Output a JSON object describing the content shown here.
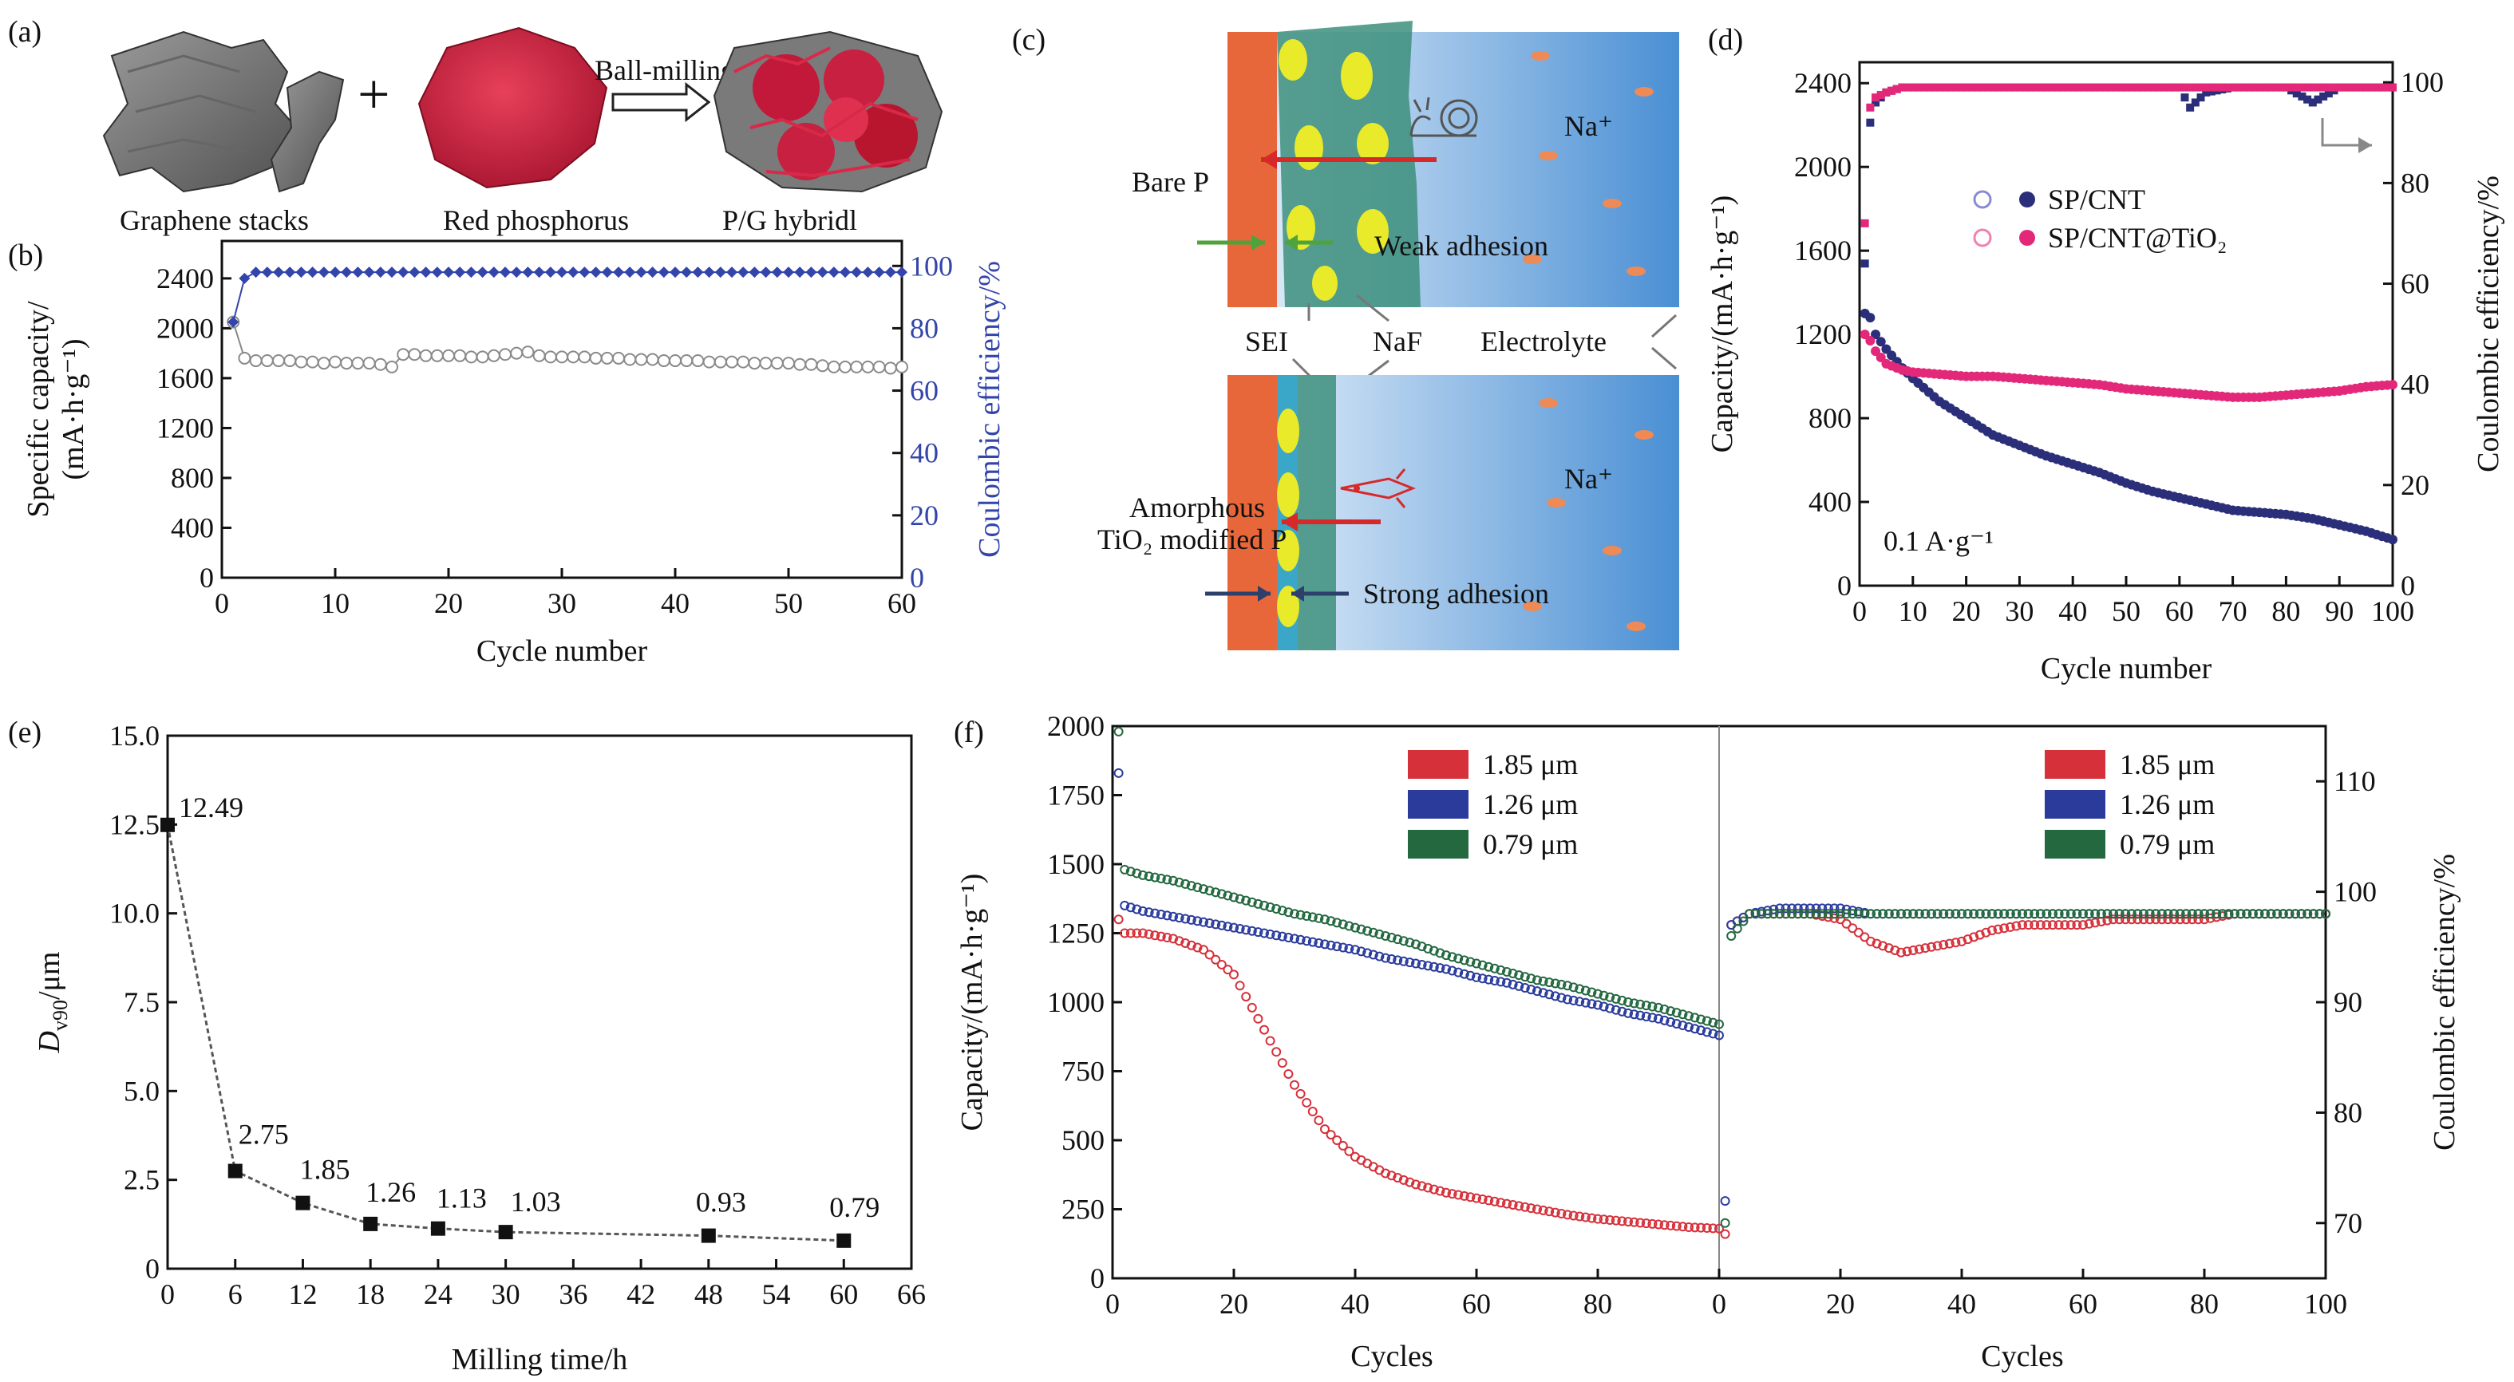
{
  "colors": {
    "grey_circle": "#8a8a8a",
    "blue_diamond": "#3344aa",
    "navy_dot": "#2b2f7a",
    "pink_dot": "#e3287a",
    "red_series": "#d6303a",
    "blue_series": "#2a3b9c",
    "green_series": "#23683f",
    "electrode": "#e8673a",
    "sei": "#3aa6c8",
    "naf": "#e8ea2a",
    "electrolyte": "#4a8fd4",
    "ion": "#ee8a55",
    "arrow_red": "#d62a2a",
    "arrow_green": "#4ea33a",
    "arrow_navy": "#2d3f6b"
  },
  "panel_a": {
    "letter": "(a)",
    "items": [
      "Graphene stacks",
      "Red phosphorus",
      "P/G hybridl"
    ],
    "plus": "+",
    "process": "Ball-milling"
  },
  "panel_c": {
    "letter": "(c)",
    "top_label": "Bare P",
    "bottom_label_1": "Amorphous",
    "bottom_label_2": "TiO₂ modified P",
    "weak": "Weak adhesion",
    "strong": "Strong adhesion",
    "sei": "SEI",
    "naf": "NaF",
    "electrolyte": "Electrolyte",
    "na_ion": "Na⁺",
    "snail_icon": "snail-icon",
    "rocket_icon": "rocket-icon"
  },
  "chart_data": [
    {
      "id": "b",
      "letter": "(b)",
      "type": "scatter",
      "xlabel": "Cycle number",
      "ylabel_left": "Specific capacity/",
      "ylabel_left_units": "(mA·h·g⁻¹)",
      "ylabel_right": "Coulombic efficiency/%",
      "xlim": [
        0,
        60
      ],
      "xticks": [
        0,
        10,
        20,
        30,
        40,
        50,
        60
      ],
      "ylim_left": [
        0,
        2700
      ],
      "yticks_left": [
        0,
        400,
        800,
        1200,
        1600,
        2000,
        2400
      ],
      "ylim_right": [
        0,
        108
      ],
      "yticks_right": [
        0,
        20,
        40,
        60,
        80,
        100
      ],
      "series": [
        {
          "axis": "left",
          "marker": "open-circle",
          "x": [
            1,
            2,
            3,
            4,
            5,
            6,
            7,
            8,
            9,
            10,
            11,
            12,
            13,
            14,
            15,
            16,
            17,
            18,
            19,
            20,
            21,
            22,
            23,
            24,
            25,
            26,
            27,
            28,
            29,
            30,
            31,
            32,
            33,
            34,
            35,
            36,
            37,
            38,
            39,
            40,
            41,
            42,
            43,
            44,
            45,
            46,
            47,
            48,
            49,
            50,
            51,
            52,
            53,
            54,
            55,
            56,
            57,
            58,
            59,
            60
          ],
          "values": [
            2050,
            1760,
            1740,
            1740,
            1740,
            1740,
            1730,
            1730,
            1720,
            1730,
            1720,
            1720,
            1720,
            1710,
            1690,
            1790,
            1790,
            1780,
            1780,
            1780,
            1780,
            1770,
            1770,
            1780,
            1790,
            1800,
            1810,
            1780,
            1770,
            1770,
            1770,
            1770,
            1760,
            1760,
            1760,
            1750,
            1750,
            1750,
            1740,
            1740,
            1740,
            1740,
            1730,
            1730,
            1730,
            1730,
            1720,
            1720,
            1720,
            1720,
            1710,
            1710,
            1700,
            1690,
            1690,
            1690,
            1690,
            1690,
            1680,
            1690
          ]
        },
        {
          "axis": "right",
          "marker": "filled-diamond",
          "x": [
            1,
            2,
            3,
            4,
            5,
            6,
            7,
            8,
            9,
            10,
            11,
            12,
            13,
            14,
            15,
            16,
            17,
            18,
            19,
            20,
            21,
            22,
            23,
            24,
            25,
            26,
            27,
            28,
            29,
            30,
            31,
            32,
            33,
            34,
            35,
            36,
            37,
            38,
            39,
            40,
            41,
            42,
            43,
            44,
            45,
            46,
            47,
            48,
            49,
            50,
            51,
            52,
            53,
            54,
            55,
            56,
            57,
            58,
            59,
            60
          ],
          "values": [
            82,
            96,
            98,
            98,
            98,
            98,
            98,
            98,
            98,
            98,
            98,
            98,
            98,
            98,
            98,
            98,
            98,
            98,
            98,
            98,
            98,
            98,
            98,
            98,
            98,
            98,
            98,
            98,
            98,
            98,
            98,
            98,
            98,
            98,
            98,
            98,
            98,
            98,
            98,
            98,
            98,
            98,
            98,
            98,
            98,
            98,
            98,
            98,
            98,
            98,
            98,
            98,
            98,
            98,
            98,
            98,
            98,
            98,
            98,
            98
          ]
        }
      ]
    },
    {
      "id": "d",
      "letter": "(d)",
      "type": "scatter",
      "xlabel": "Cycle number",
      "ylabel_left": "Capacity/(mA·h·g⁻¹)",
      "ylabel_right": "Coulombic efficiency/%",
      "xlim": [
        0,
        100
      ],
      "xticks": [
        0,
        10,
        20,
        30,
        40,
        50,
        60,
        70,
        80,
        90,
        100
      ],
      "ylim_left": [
        0,
        2500
      ],
      "yticks_left": [
        0,
        400,
        800,
        1200,
        1600,
        2000,
        2400
      ],
      "ylim_right": [
        0,
        104
      ],
      "yticks_right": [
        0,
        20,
        40,
        60,
        80,
        100
      ],
      "annotation": "0.1 A·g⁻¹",
      "legend": [
        "SP/CNT",
        "SP/CNT@TiO₂"
      ],
      "legend_position": "middle-right",
      "series": [
        {
          "name": "SP/CNT",
          "axis": "left",
          "x": [
            1,
            2,
            3,
            5,
            8,
            10,
            15,
            20,
            25,
            30,
            35,
            40,
            45,
            50,
            55,
            60,
            65,
            70,
            75,
            80,
            85,
            90,
            95,
            100
          ],
          "values": [
            1300,
            1280,
            1200,
            1130,
            1040,
            990,
            880,
            800,
            720,
            670,
            620,
            580,
            540,
            490,
            450,
            420,
            390,
            360,
            350,
            340,
            320,
            290,
            260,
            220
          ]
        },
        {
          "name": "SP/CNT@TiO₂",
          "axis": "left",
          "x": [
            1,
            2,
            3,
            5,
            8,
            10,
            15,
            20,
            25,
            30,
            35,
            40,
            45,
            50,
            55,
            60,
            65,
            70,
            75,
            80,
            85,
            90,
            95,
            100
          ],
          "values": [
            1200,
            1170,
            1120,
            1060,
            1030,
            1020,
            1010,
            1000,
            1000,
            990,
            980,
            970,
            960,
            940,
            930,
            920,
            910,
            900,
            900,
            910,
            920,
            930,
            950,
            960
          ]
        },
        {
          "name": "SP/CNT",
          "axis": "right",
          "x": [
            1,
            2,
            3,
            5,
            8,
            10,
            15,
            20,
            25,
            30,
            35,
            40,
            45,
            50,
            55,
            60,
            62,
            65,
            70,
            75,
            80,
            85,
            90,
            95,
            100
          ],
          "values": [
            64,
            92,
            96,
            98,
            99,
            99,
            99,
            99,
            99,
            99,
            99,
            99,
            99,
            99,
            99,
            99,
            95,
            98,
            99,
            99,
            99,
            96,
            99,
            99,
            99
          ]
        },
        {
          "name": "SP/CNT@TiO₂",
          "axis": "right",
          "x": [
            1,
            2,
            3,
            5,
            8,
            10,
            15,
            20,
            25,
            30,
            35,
            40,
            45,
            50,
            55,
            60,
            65,
            70,
            75,
            80,
            85,
            90,
            95,
            100
          ],
          "values": [
            72,
            95,
            97,
            98,
            99,
            99,
            99,
            99,
            99,
            99,
            99,
            99,
            99,
            99,
            99,
            99,
            99,
            99,
            99,
            99,
            99,
            99,
            99,
            99
          ]
        }
      ]
    },
    {
      "id": "e",
      "letter": "(e)",
      "type": "line",
      "xlabel": "Milling time/h",
      "ylabel": "D",
      "ylabel_sub": "v90",
      "ylabel_units": "/μm",
      "xlim": [
        0,
        66
      ],
      "xticks": [
        0,
        6,
        12,
        18,
        24,
        30,
        36,
        42,
        48,
        54,
        60,
        66
      ],
      "ylim": [
        0,
        15
      ],
      "yticks": [
        0,
        2.5,
        5.0,
        7.5,
        10.0,
        12.5,
        15.0
      ],
      "ytick_labels": [
        "0",
        "2.5",
        "5.0",
        "7.5",
        "10.0",
        "12.5",
        "15.0"
      ],
      "x": [
        0,
        6,
        12,
        18,
        24,
        30,
        48,
        60
      ],
      "values": [
        12.49,
        2.75,
        1.85,
        1.26,
        1.13,
        1.03,
        0.93,
        0.79
      ],
      "data_labels": [
        "12.49",
        "2.75",
        "1.85",
        "1.26",
        "1.13",
        "1.03",
        "0.93",
        "0.79"
      ]
    },
    {
      "id": "f",
      "letter": "(f)",
      "type": "scatter",
      "xlabel": "Cycles",
      "ylabel_left": "Capacity/(mA·h·g⁻¹)",
      "ylabel_right": "Coulombic efficiency/%",
      "xlim": [
        0,
        100
      ],
      "xticks": [
        0,
        20,
        40,
        60,
        80,
        100
      ],
      "xtick_labels_left": [
        "0",
        "20",
        "40",
        "60",
        "80",
        ""
      ],
      "ylim_left": [
        0,
        2000
      ],
      "yticks_left": [
        0,
        250,
        500,
        750,
        1000,
        1250,
        1500,
        1750,
        2000
      ],
      "ylim_right": [
        65,
        115
      ],
      "yticks_right": [
        70,
        80,
        90,
        100,
        110
      ],
      "legend": [
        "1.85 μm",
        "1.26 μm",
        "0.79 μm"
      ],
      "capacity_series": [
        {
          "name": "1.85 μm",
          "x": [
            1,
            2,
            5,
            10,
            15,
            20,
            25,
            30,
            35,
            40,
            45,
            50,
            55,
            60,
            65,
            70,
            75,
            80,
            85,
            90,
            95,
            100
          ],
          "values": [
            1300,
            1250,
            1250,
            1230,
            1190,
            1100,
            900,
            700,
            540,
            440,
            380,
            340,
            310,
            290,
            270,
            250,
            230,
            215,
            205,
            195,
            185,
            180
          ]
        },
        {
          "name": "1.26 μm",
          "x": [
            1,
            2,
            5,
            10,
            15,
            20,
            25,
            30,
            35,
            40,
            45,
            50,
            55,
            60,
            65,
            70,
            75,
            80,
            85,
            90,
            95,
            100
          ],
          "values": [
            1830,
            1350,
            1330,
            1310,
            1290,
            1270,
            1250,
            1230,
            1210,
            1190,
            1160,
            1140,
            1120,
            1090,
            1070,
            1040,
            1010,
            990,
            960,
            940,
            910,
            880
          ]
        },
        {
          "name": "0.79 μm",
          "x": [
            1,
            2,
            5,
            10,
            15,
            20,
            25,
            30,
            35,
            40,
            45,
            50,
            55,
            60,
            65,
            70,
            75,
            80,
            85,
            90,
            95,
            100
          ],
          "values": [
            1980,
            1480,
            1460,
            1440,
            1410,
            1380,
            1350,
            1320,
            1300,
            1270,
            1240,
            1210,
            1170,
            1140,
            1110,
            1080,
            1060,
            1030,
            1000,
            980,
            950,
            920
          ]
        }
      ],
      "efficiency_series": [
        {
          "name": "1.85 μm",
          "x": [
            1,
            2,
            5,
            10,
            15,
            20,
            25,
            30,
            35,
            40,
            45,
            50,
            55,
            60,
            65,
            70,
            75,
            80,
            85,
            90,
            95,
            100
          ],
          "values": [
            69,
            97,
            98,
            98,
            98,
            97.5,
            95.5,
            94.5,
            95,
            95.5,
            96.5,
            97,
            97,
            97,
            97.5,
            97.5,
            97.5,
            97.5,
            98,
            98,
            98,
            98
          ]
        },
        {
          "name": "1.26 μm",
          "x": [
            1,
            2,
            5,
            10,
            15,
            20,
            25,
            30,
            35,
            40,
            45,
            50,
            55,
            60,
            65,
            70,
            75,
            80,
            85,
            90,
            95,
            100
          ],
          "values": [
            72,
            97,
            98,
            98.5,
            98.5,
            98.5,
            98,
            98,
            98,
            98,
            98,
            98,
            98,
            98,
            98,
            98,
            98,
            98,
            98,
            98,
            98,
            98
          ]
        },
        {
          "name": "0.79 μm",
          "x": [
            1,
            2,
            5,
            10,
            15,
            20,
            25,
            30,
            35,
            40,
            45,
            50,
            55,
            60,
            65,
            70,
            75,
            80,
            85,
            90,
            95,
            100
          ],
          "values": [
            70,
            96,
            98,
            98,
            98,
            98,
            98,
            98,
            98,
            98,
            98,
            98,
            98,
            98,
            98,
            98,
            98,
            98,
            98,
            98,
            98,
            98
          ]
        }
      ]
    }
  ]
}
